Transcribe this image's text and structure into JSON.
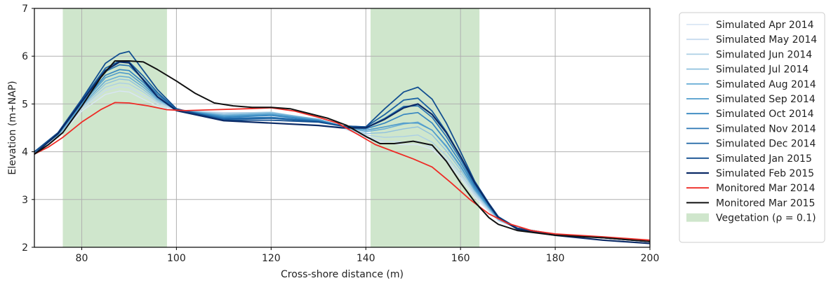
{
  "chart_data": {
    "type": "line",
    "xlabel": "Cross-shore distance (m)",
    "ylabel": "Elevation (m+NAP)",
    "xlim": [
      70,
      200
    ],
    "ylim": [
      2,
      7
    ],
    "xticks": [
      80,
      100,
      120,
      140,
      160,
      180,
      200
    ],
    "yticks": [
      2,
      3,
      4,
      5,
      6,
      7
    ],
    "grid": true,
    "legend_position": "outside-right",
    "shaded_regions": [
      {
        "name": "Vegetation (ρ = 0.1)",
        "x0": 76,
        "x1": 98,
        "color": "#cfe6cc"
      },
      {
        "name": "",
        "x0": 141,
        "x1": 164,
        "color": "#cfe6cc"
      }
    ],
    "series": [
      {
        "name": "Simulated Apr 2014",
        "color": "#d9e6f5",
        "width": 1.4,
        "x": [
          70,
          75,
          80,
          85,
          88,
          90,
          93,
          96,
          100,
          110,
          120,
          130,
          135,
          140,
          144,
          148,
          151,
          154,
          157,
          160,
          163,
          166,
          168,
          172,
          180,
          190,
          200
        ],
        "y": [
          4.0,
          4.3,
          4.85,
          5.2,
          5.27,
          5.25,
          5.1,
          4.95,
          4.85,
          4.82,
          4.8,
          4.65,
          4.5,
          4.3,
          4.18,
          4.15,
          4.15,
          4.05,
          3.8,
          3.45,
          3.05,
          2.75,
          2.55,
          2.4,
          2.27,
          2.2,
          2.12
        ]
      },
      {
        "name": "Simulated May 2014",
        "color": "#c6dbef",
        "width": 1.4,
        "x": [
          70,
          75,
          80,
          85,
          88,
          90,
          93,
          96,
          100,
          110,
          120,
          130,
          135,
          140,
          144,
          148,
          151,
          154,
          157,
          160,
          163,
          166,
          168,
          172,
          180,
          190,
          200
        ],
        "y": [
          4.0,
          4.32,
          4.9,
          5.28,
          5.36,
          5.34,
          5.18,
          5.0,
          4.87,
          4.82,
          4.82,
          4.66,
          4.5,
          4.32,
          4.22,
          4.2,
          4.22,
          4.1,
          3.85,
          3.5,
          3.1,
          2.77,
          2.56,
          2.4,
          2.27,
          2.2,
          2.12
        ]
      },
      {
        "name": "Simulated Jun 2014",
        "color": "#abcfe5",
        "width": 1.4,
        "x": [
          70,
          75,
          80,
          85,
          88,
          90,
          93,
          96,
          100,
          110,
          120,
          130,
          135,
          140,
          144,
          148,
          151,
          154,
          157,
          160,
          163,
          166,
          168,
          172,
          180,
          190,
          200
        ],
        "y": [
          4.0,
          4.33,
          4.93,
          5.35,
          5.44,
          5.42,
          5.25,
          5.04,
          4.88,
          4.8,
          4.83,
          4.67,
          4.52,
          4.35,
          4.3,
          4.32,
          4.35,
          4.2,
          3.92,
          3.55,
          3.13,
          2.79,
          2.57,
          2.4,
          2.27,
          2.2,
          2.12
        ]
      },
      {
        "name": "Simulated Jul 2014",
        "color": "#8fc1de",
        "width": 1.4,
        "x": [
          70,
          75,
          80,
          85,
          88,
          90,
          93,
          96,
          100,
          110,
          120,
          130,
          135,
          140,
          144,
          148,
          151,
          154,
          157,
          160,
          163,
          166,
          168,
          172,
          180,
          190,
          200
        ],
        "y": [
          4.0,
          4.34,
          4.95,
          5.42,
          5.52,
          5.5,
          5.3,
          5.07,
          4.88,
          4.78,
          4.82,
          4.68,
          4.53,
          4.38,
          4.4,
          4.48,
          4.52,
          4.35,
          4.02,
          3.62,
          3.17,
          2.81,
          2.58,
          2.4,
          2.27,
          2.2,
          2.12
        ]
      },
      {
        "name": "Simulated Aug 2014",
        "color": "#6aaed6",
        "width": 1.6,
        "x": [
          70,
          75,
          80,
          85,
          88,
          90,
          93,
          96,
          100,
          110,
          120,
          130,
          135,
          140,
          144,
          148,
          151,
          154,
          157,
          160,
          163,
          166,
          168,
          172,
          180,
          190,
          200
        ],
        "y": [
          4.0,
          4.35,
          4.97,
          5.48,
          5.58,
          5.56,
          5.35,
          5.1,
          4.88,
          4.76,
          4.8,
          4.68,
          4.54,
          4.42,
          4.48,
          4.58,
          4.62,
          4.45,
          4.1,
          3.68,
          3.2,
          2.83,
          2.59,
          2.4,
          2.27,
          2.2,
          2.12
        ]
      },
      {
        "name": "Simulated Sep 2014",
        "color": "#4f9bcb",
        "width": 1.6,
        "x": [
          70,
          75,
          80,
          85,
          88,
          90,
          93,
          96,
          100,
          110,
          120,
          130,
          135,
          140,
          144,
          148,
          151,
          154,
          157,
          160,
          163,
          166,
          168,
          172,
          180,
          190,
          200
        ],
        "y": [
          4.0,
          4.36,
          5.0,
          5.55,
          5.66,
          5.63,
          5.4,
          5.13,
          4.88,
          4.74,
          4.78,
          4.66,
          4.54,
          4.45,
          4.52,
          4.6,
          4.6,
          4.45,
          4.12,
          3.7,
          3.22,
          2.84,
          2.6,
          2.4,
          2.27,
          2.2,
          2.12
        ]
      },
      {
        "name": "Simulated Oct 2014",
        "color": "#3787c0",
        "width": 1.7,
        "x": [
          70,
          75,
          80,
          85,
          88,
          90,
          93,
          96,
          100,
          110,
          120,
          130,
          135,
          140,
          144,
          148,
          151,
          154,
          157,
          160,
          163,
          166,
          168,
          172,
          180,
          190,
          200
        ],
        "y": [
          4.0,
          4.37,
          5.02,
          5.6,
          5.72,
          5.7,
          5.45,
          5.15,
          4.88,
          4.72,
          4.76,
          4.65,
          4.54,
          4.48,
          4.6,
          4.78,
          4.82,
          4.6,
          4.22,
          3.77,
          3.26,
          2.86,
          2.61,
          2.4,
          2.27,
          2.2,
          2.12
        ]
      },
      {
        "name": "Simulated Nov 2014",
        "color": "#2a76b4",
        "width": 1.7,
        "x": [
          70,
          75,
          80,
          85,
          88,
          90,
          93,
          96,
          100,
          110,
          120,
          130,
          135,
          140,
          144,
          148,
          151,
          154,
          157,
          160,
          163,
          166,
          168,
          172,
          180,
          190,
          200
        ],
        "y": [
          4.0,
          4.38,
          5.05,
          5.68,
          5.82,
          5.8,
          5.52,
          5.2,
          4.88,
          4.7,
          4.72,
          4.64,
          4.54,
          4.5,
          4.7,
          4.95,
          4.96,
          4.72,
          4.32,
          3.84,
          3.3,
          2.88,
          2.62,
          2.4,
          2.27,
          2.2,
          2.12
        ]
      },
      {
        "name": "Simulated Dec 2014",
        "color": "#1c63a3",
        "width": 1.8,
        "x": [
          70,
          75,
          80,
          85,
          88,
          90,
          93,
          96,
          100,
          110,
          120,
          130,
          135,
          140,
          144,
          148,
          151,
          154,
          157,
          160,
          163,
          166,
          168,
          172,
          180,
          190,
          200
        ],
        "y": [
          4.0,
          4.39,
          5.08,
          5.75,
          5.9,
          5.88,
          5.58,
          5.24,
          4.88,
          4.68,
          4.7,
          4.63,
          4.54,
          4.52,
          4.78,
          5.08,
          5.12,
          4.85,
          4.42,
          3.9,
          3.34,
          2.9,
          2.63,
          2.4,
          2.27,
          2.2,
          2.12
        ]
      },
      {
        "name": "Simulated Jan 2015",
        "color": "#134f90",
        "width": 1.8,
        "x": [
          70,
          75,
          80,
          85,
          88,
          90,
          93,
          96,
          100,
          110,
          120,
          130,
          135,
          140,
          144,
          148,
          151,
          154,
          157,
          160,
          163,
          166,
          168,
          172,
          180,
          190,
          200
        ],
        "y": [
          4.0,
          4.4,
          5.1,
          5.85,
          6.05,
          6.1,
          5.7,
          5.3,
          4.9,
          4.66,
          4.66,
          4.62,
          4.54,
          4.52,
          4.9,
          5.25,
          5.35,
          5.1,
          4.6,
          4.0,
          3.38,
          2.92,
          2.64,
          2.4,
          2.27,
          2.2,
          2.12
        ]
      },
      {
        "name": "Simulated Feb 2015",
        "color": "#0b2a66",
        "width": 2.2,
        "x": [
          70,
          75,
          80,
          85,
          88,
          90,
          93,
          96,
          100,
          110,
          120,
          130,
          135,
          140,
          144,
          148,
          151,
          154,
          157,
          160,
          163,
          166,
          168,
          172,
          180,
          190,
          200
        ],
        "y": [
          3.95,
          4.38,
          5.05,
          5.7,
          5.88,
          5.86,
          5.5,
          5.15,
          4.86,
          4.65,
          4.6,
          4.55,
          4.5,
          4.5,
          4.68,
          4.92,
          5.0,
          4.78,
          4.4,
          3.9,
          3.35,
          2.9,
          2.62,
          2.38,
          2.25,
          2.15,
          2.08
        ]
      },
      {
        "name": "Monitored Mar 2014",
        "color": "#ee2b25",
        "width": 1.8,
        "x": [
          70,
          73,
          76,
          80,
          84,
          87,
          90,
          94,
          98,
          102,
          108,
          115,
          120,
          125,
          130,
          134,
          138,
          142,
          146,
          150,
          154,
          158,
          162,
          166,
          170,
          175,
          180,
          190,
          200
        ],
        "y": [
          3.95,
          4.1,
          4.3,
          4.62,
          4.88,
          5.03,
          5.02,
          4.96,
          4.88,
          4.86,
          4.88,
          4.9,
          4.92,
          4.85,
          4.72,
          4.6,
          4.38,
          4.15,
          4.0,
          3.85,
          3.68,
          3.35,
          3.0,
          2.7,
          2.5,
          2.35,
          2.28,
          2.22,
          2.15
        ]
      },
      {
        "name": "Monitored Mar 2015",
        "color": "#111111",
        "width": 2.0,
        "x": [
          70,
          73,
          76,
          80,
          84,
          87,
          90,
          93,
          96,
          100,
          104,
          108,
          112,
          116,
          120,
          124,
          128,
          132,
          136,
          140,
          143,
          146,
          150,
          154,
          157,
          160,
          163,
          166,
          168,
          172,
          180,
          190,
          200
        ],
        "y": [
          3.95,
          4.15,
          4.4,
          4.95,
          5.55,
          5.9,
          5.9,
          5.88,
          5.72,
          5.48,
          5.22,
          5.02,
          4.96,
          4.93,
          4.93,
          4.9,
          4.8,
          4.7,
          4.55,
          4.32,
          4.17,
          4.17,
          4.22,
          4.14,
          3.8,
          3.35,
          2.95,
          2.62,
          2.48,
          2.35,
          2.25,
          2.2,
          2.12
        ]
      }
    ]
  }
}
